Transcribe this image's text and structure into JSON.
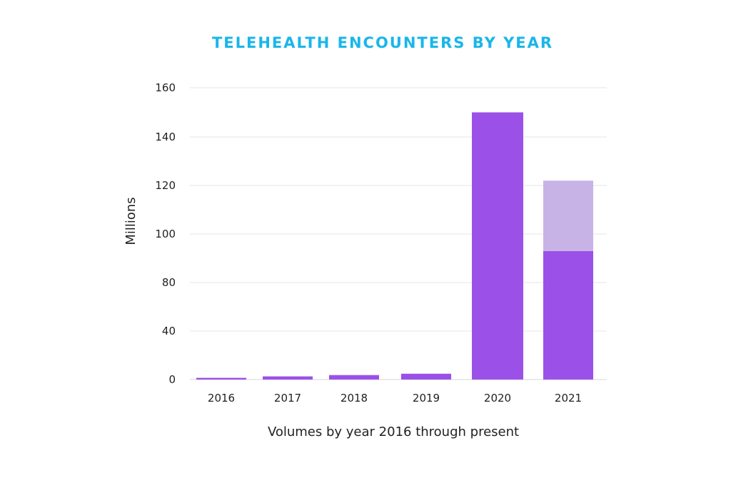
{
  "chart_data": {
    "type": "bar",
    "title": "TELEHEALTH ENCOUNTERS BY YEAR",
    "xlabel": "Volumes by year 2016 through present",
    "ylabel": "Millions",
    "categories": [
      "2016",
      "2017",
      "2018",
      "2019",
      "2020",
      "2021"
    ],
    "series": [
      {
        "values": [
          1.4,
          2.6,
          3.7,
          4.8,
          150.0,
          93.0
        ],
        "color": "#9b51e8"
      },
      {
        "values": [
          0,
          0,
          0,
          0,
          0,
          29.0
        ],
        "color": "#c8b3e6"
      }
    ],
    "yticks": [
      "0",
      "40",
      "80",
      "100",
      "120",
      "140",
      "160"
    ],
    "stacked": true,
    "grid": true,
    "legend": "none"
  }
}
